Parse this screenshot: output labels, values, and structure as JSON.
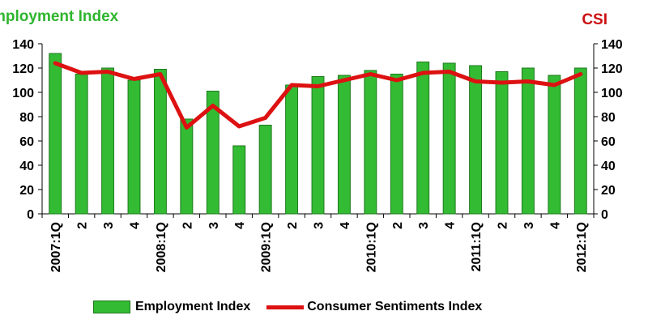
{
  "titles": {
    "left": "mployment Index",
    "right": "CSI"
  },
  "legend": {
    "bars": "Employment Index",
    "line": "Consumer Sentiments Index"
  },
  "colors": {
    "bar_fill": "#33bb33",
    "bar_stroke": "#1f7a1f",
    "line": "#dd1111",
    "left_title": "#2fb52f",
    "right_title": "#cc1111"
  },
  "chart_data": {
    "type": "bar",
    "categories": [
      "2007:1Q",
      "2",
      "3",
      "4",
      "2008:1Q",
      "2",
      "3",
      "4",
      "2009:1Q",
      "2",
      "3",
      "4",
      "2010:1Q",
      "2",
      "3",
      "4",
      "2011:1Q",
      "2",
      "3",
      "4",
      "2012:1Q"
    ],
    "series": [
      {
        "name": "Employment Index",
        "type": "bar",
        "axis": "left",
        "values": [
          132,
          115,
          120,
          110,
          119,
          78,
          101,
          56,
          73,
          106,
          113,
          114,
          118,
          115,
          125,
          124,
          122,
          117,
          120,
          114,
          120
        ]
      },
      {
        "name": "Consumer Sentiments Index",
        "type": "line",
        "axis": "right",
        "values": [
          124,
          116,
          117,
          111,
          115,
          71,
          89,
          72,
          79,
          106,
          105,
          110,
          115,
          110,
          116,
          117,
          109,
          108,
          109,
          106,
          115
        ]
      }
    ],
    "y_left": {
      "min": 0,
      "max": 140,
      "step": 20,
      "ticks": [
        "0",
        "20",
        "40",
        "60",
        "80",
        "100",
        "120",
        "140"
      ]
    },
    "y_right": {
      "min": 0,
      "max": 140,
      "step": 20,
      "ticks": [
        "0",
        "20",
        "40",
        "60",
        "80",
        "100",
        "120",
        "140"
      ]
    },
    "grid": false,
    "legend_position": "bottom"
  }
}
